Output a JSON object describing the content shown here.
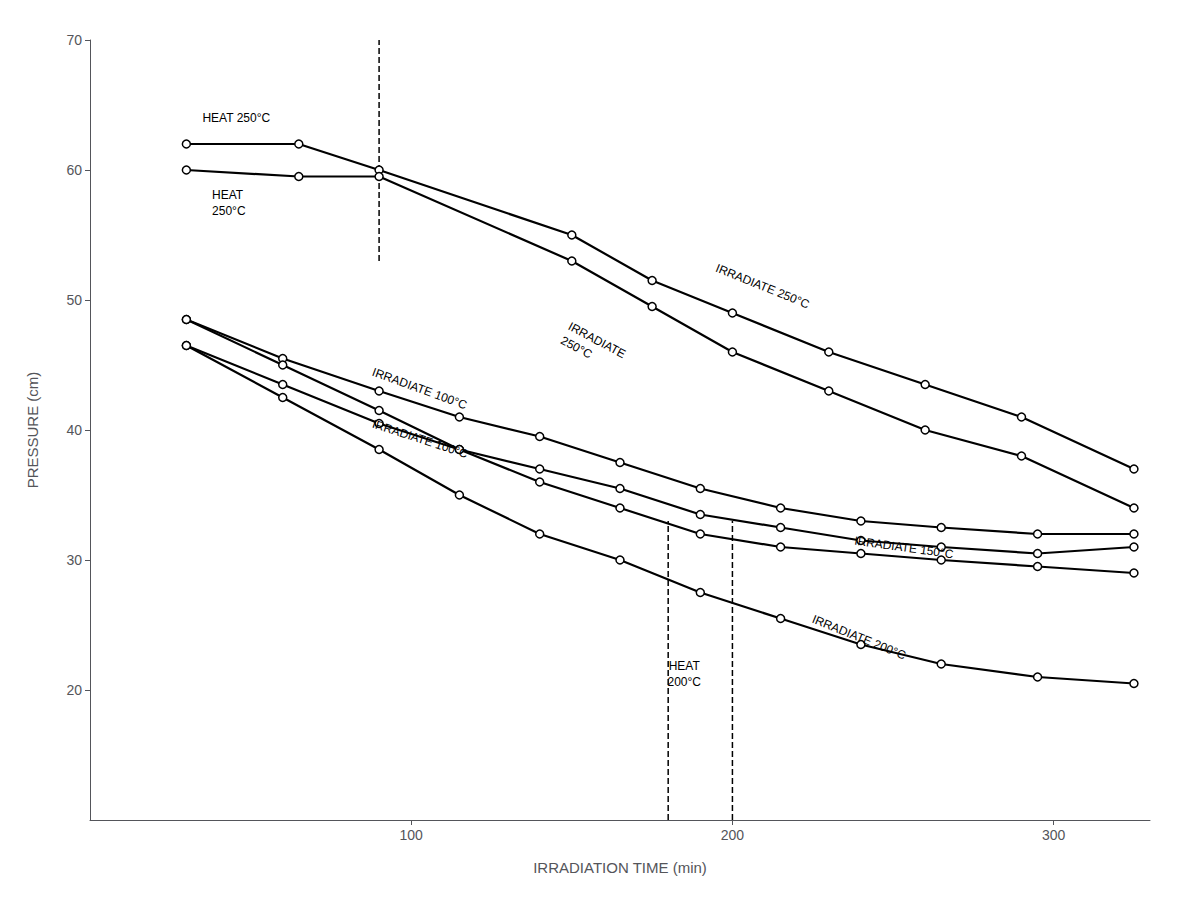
{
  "chart_data": {
    "type": "line",
    "xlabel": "IRRADIATION TIME (min)",
    "ylabel": "PRESSURE (cm)",
    "xlim": [
      0,
      330
    ],
    "ylim": [
      10,
      70
    ],
    "xticks": [
      100,
      200,
      300
    ],
    "yticks": [
      20,
      30,
      40,
      50,
      60,
      70
    ],
    "grid": false,
    "color": "#000000",
    "marker": "circle",
    "series": [
      {
        "x": [
          30,
          65,
          90,
          150,
          175,
          200,
          230,
          260,
          290,
          325
        ],
        "values": [
          62.0,
          62.0,
          60.0,
          55.0,
          51.5,
          49.0,
          46.0,
          43.5,
          41.0,
          37.0
        ]
      },
      {
        "x": [
          30,
          65,
          90,
          150,
          175,
          200,
          230,
          260,
          290,
          325
        ],
        "values": [
          60.0,
          59.5,
          59.5,
          53.0,
          49.5,
          46.0,
          43.0,
          40.0,
          38.0,
          34.0
        ]
      },
      {
        "x": [
          30,
          60,
          90,
          115,
          140,
          165,
          190,
          215,
          240,
          265,
          295,
          325
        ],
        "values": [
          48.5,
          45.5,
          43.0,
          41.0,
          39.5,
          37.5,
          35.5,
          34.0,
          33.0,
          32.5,
          32.0,
          32.0
        ]
      },
      {
        "x": [
          30,
          60,
          90,
          115,
          140,
          165,
          190,
          215,
          240,
          265,
          295,
          325
        ],
        "values": [
          46.5,
          43.5,
          40.5,
          38.5,
          37.0,
          35.5,
          33.5,
          32.5,
          31.5,
          31.0,
          30.5,
          31.0
        ]
      },
      {
        "x": [
          30,
          60,
          90,
          115,
          140,
          165,
          190,
          215,
          240,
          265,
          295,
          325
        ],
        "values": [
          48.5,
          45.0,
          41.5,
          38.5,
          36.0,
          34.0,
          32.0,
          31.0,
          30.5,
          30.0,
          29.5,
          29.0
        ]
      },
      {
        "x": [
          30,
          60,
          90,
          115,
          140,
          165,
          190,
          215,
          240,
          265,
          295,
          325
        ],
        "values": [
          46.5,
          42.5,
          38.5,
          35.0,
          32.0,
          30.0,
          27.5,
          25.5,
          23.5,
          22.0,
          21.0,
          20.5
        ]
      }
    ],
    "vlines": [
      {
        "x": 90,
        "ymin": 53,
        "ymax": 70,
        "line_style": "dashed"
      },
      {
        "x": 180,
        "ymin": 10,
        "ymax": 33,
        "line_style": "dashed"
      },
      {
        "x": 200,
        "ymin": 10,
        "ymax": 33,
        "line_style": "dashed"
      }
    ],
    "annotations": [
      {
        "text": "HEAT 250°C",
        "x": 35,
        "y": 64.0
      },
      {
        "text": "HEAT\n250°C",
        "x": 38,
        "y": 57.5
      },
      {
        "text": "IRRADIATE 250°C",
        "x": 195,
        "y": 52.5
      },
      {
        "text": "IRRADIATE\n250°C",
        "x": 148,
        "y": 47.5
      },
      {
        "text": "IRRADIATE 100°C",
        "x": 88,
        "y": 44.5
      },
      {
        "text": "IRRADIATE 100°C",
        "x": 88,
        "y": 40.5
      },
      {
        "text": "IRRADIATE 150°C",
        "x": 238,
        "y": 31.5
      },
      {
        "text": "IRRADIATE 200°C",
        "x": 225,
        "y": 25.5
      },
      {
        "text": "HEAT\n200°C",
        "x": 185,
        "y": 22.5
      }
    ]
  }
}
